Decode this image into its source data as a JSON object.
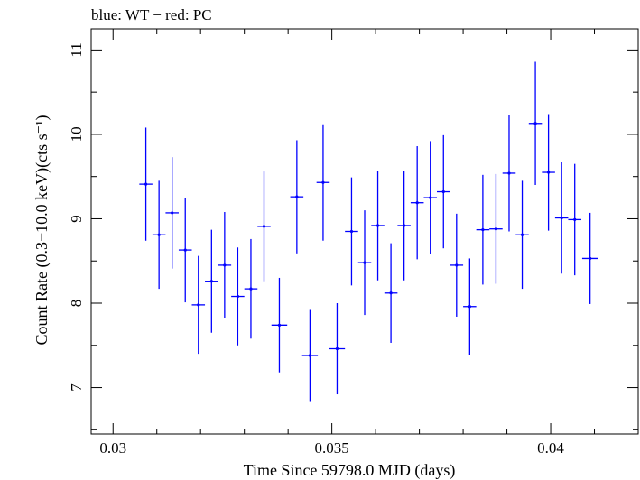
{
  "chart_data": {
    "type": "scatter",
    "title": "blue: WT − red: PC",
    "xlabel": "Time Since 59798.0 MJD (days)",
    "ylabel": "Count Rate (0.3−10.0 keV)(cts s⁻¹)",
    "xlim": [
      0.0295,
      0.042
    ],
    "ylim": [
      6.45,
      11.25
    ],
    "x_ticks": [
      0.03,
      0.035,
      0.04
    ],
    "x_tick_labels": [
      "0.03",
      "0.035",
      "0.04"
    ],
    "y_ticks": [
      7,
      8,
      9,
      10,
      11
    ],
    "y_tick_labels": [
      "7",
      "8",
      "9",
      "10",
      "11"
    ],
    "grid": false,
    "colors": {
      "wt": "#0000ff",
      "axes": "#000000"
    },
    "series": [
      {
        "name": "WT",
        "color": "#0000ff",
        "points": [
          {
            "x": 0.03075,
            "y": 9.41,
            "xerr": 0.00015,
            "yerr_lo": 0.67,
            "yerr_hi": 0.67
          },
          {
            "x": 0.03105,
            "y": 8.81,
            "xerr": 0.00015,
            "yerr_lo": 0.64,
            "yerr_hi": 0.64
          },
          {
            "x": 0.03135,
            "y": 9.07,
            "xerr": 0.00015,
            "yerr_lo": 0.66,
            "yerr_hi": 0.66
          },
          {
            "x": 0.03165,
            "y": 8.63,
            "xerr": 0.00015,
            "yerr_lo": 0.62,
            "yerr_hi": 0.62
          },
          {
            "x": 0.03195,
            "y": 7.98,
            "xerr": 0.00015,
            "yerr_lo": 0.58,
            "yerr_hi": 0.58
          },
          {
            "x": 0.03225,
            "y": 8.26,
            "xerr": 0.00015,
            "yerr_lo": 0.61,
            "yerr_hi": 0.61
          },
          {
            "x": 0.03255,
            "y": 8.45,
            "xerr": 0.00015,
            "yerr_lo": 0.63,
            "yerr_hi": 0.63
          },
          {
            "x": 0.03285,
            "y": 8.08,
            "xerr": 0.00015,
            "yerr_lo": 0.58,
            "yerr_hi": 0.58
          },
          {
            "x": 0.03315,
            "y": 8.17,
            "xerr": 0.00015,
            "yerr_lo": 0.59,
            "yerr_hi": 0.59
          },
          {
            "x": 0.03345,
            "y": 8.91,
            "xerr": 0.00015,
            "yerr_lo": 0.65,
            "yerr_hi": 0.65
          },
          {
            "x": 0.0338,
            "y": 7.74,
            "xerr": 0.00018,
            "yerr_lo": 0.56,
            "yerr_hi": 0.56
          },
          {
            "x": 0.0342,
            "y": 9.26,
            "xerr": 0.00015,
            "yerr_lo": 0.67,
            "yerr_hi": 0.67
          },
          {
            "x": 0.0345,
            "y": 7.38,
            "xerr": 0.00018,
            "yerr_lo": 0.54,
            "yerr_hi": 0.54
          },
          {
            "x": 0.0348,
            "y": 9.43,
            "xerr": 0.00015,
            "yerr_lo": 0.69,
            "yerr_hi": 0.69
          },
          {
            "x": 0.03512,
            "y": 7.46,
            "xerr": 0.00018,
            "yerr_lo": 0.54,
            "yerr_hi": 0.54
          },
          {
            "x": 0.03545,
            "y": 8.85,
            "xerr": 0.00015,
            "yerr_lo": 0.64,
            "yerr_hi": 0.64
          },
          {
            "x": 0.03575,
            "y": 8.48,
            "xerr": 0.00015,
            "yerr_lo": 0.62,
            "yerr_hi": 0.62
          },
          {
            "x": 0.03605,
            "y": 8.92,
            "xerr": 0.00015,
            "yerr_lo": 0.65,
            "yerr_hi": 0.65
          },
          {
            "x": 0.03635,
            "y": 8.12,
            "xerr": 0.00015,
            "yerr_lo": 0.59,
            "yerr_hi": 0.59
          },
          {
            "x": 0.03665,
            "y": 8.92,
            "xerr": 0.00015,
            "yerr_lo": 0.65,
            "yerr_hi": 0.65
          },
          {
            "x": 0.03695,
            "y": 9.19,
            "xerr": 0.00015,
            "yerr_lo": 0.67,
            "yerr_hi": 0.67
          },
          {
            "x": 0.03725,
            "y": 9.25,
            "xerr": 0.00015,
            "yerr_lo": 0.67,
            "yerr_hi": 0.67
          },
          {
            "x": 0.03755,
            "y": 9.32,
            "xerr": 0.00015,
            "yerr_lo": 0.67,
            "yerr_hi": 0.67
          },
          {
            "x": 0.03785,
            "y": 8.45,
            "xerr": 0.00015,
            "yerr_lo": 0.61,
            "yerr_hi": 0.61
          },
          {
            "x": 0.03815,
            "y": 7.96,
            "xerr": 0.00015,
            "yerr_lo": 0.57,
            "yerr_hi": 0.57
          },
          {
            "x": 0.03845,
            "y": 8.87,
            "xerr": 0.00015,
            "yerr_lo": 0.65,
            "yerr_hi": 0.65
          },
          {
            "x": 0.03875,
            "y": 8.88,
            "xerr": 0.00015,
            "yerr_lo": 0.65,
            "yerr_hi": 0.65
          },
          {
            "x": 0.03905,
            "y": 9.54,
            "xerr": 0.00015,
            "yerr_lo": 0.69,
            "yerr_hi": 0.69
          },
          {
            "x": 0.03935,
            "y": 8.81,
            "xerr": 0.00015,
            "yerr_lo": 0.64,
            "yerr_hi": 0.64
          },
          {
            "x": 0.03965,
            "y": 10.13,
            "xerr": 0.00015,
            "yerr_lo": 0.73,
            "yerr_hi": 0.73
          },
          {
            "x": 0.03995,
            "y": 9.55,
            "xerr": 0.00015,
            "yerr_lo": 0.69,
            "yerr_hi": 0.69
          },
          {
            "x": 0.04025,
            "y": 9.01,
            "xerr": 0.00015,
            "yerr_lo": 0.66,
            "yerr_hi": 0.66
          },
          {
            "x": 0.04055,
            "y": 8.99,
            "xerr": 0.00015,
            "yerr_lo": 0.66,
            "yerr_hi": 0.66
          },
          {
            "x": 0.0409,
            "y": 8.53,
            "xerr": 0.00018,
            "yerr_lo": 0.54,
            "yerr_hi": 0.54
          }
        ]
      }
    ]
  }
}
